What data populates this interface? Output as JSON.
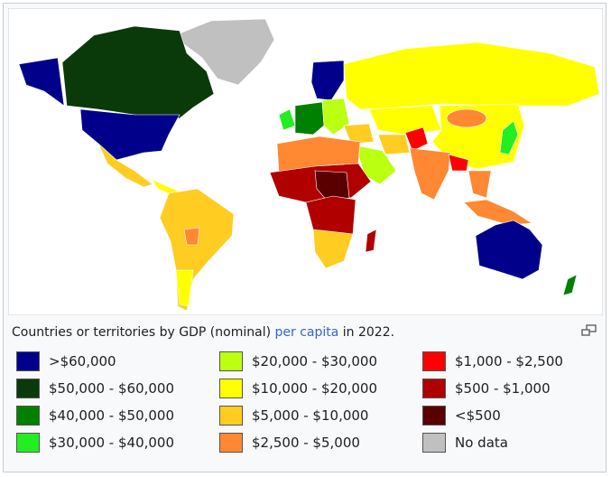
{
  "caption": {
    "before": "Countries or territories by GDP (nominal)",
    "link": "per capita",
    "after": "in 2022."
  },
  "legend": [
    {
      "label": ">$60,000",
      "color": "#00008b"
    },
    {
      "label": "$50,000 - $60,000",
      "color": "#0a3a0a"
    },
    {
      "label": "$40,000 - $50,000",
      "color": "#008000"
    },
    {
      "label": "$30,000 - $40,000",
      "color": "#22ee22"
    },
    {
      "label": "$20,000 - $30,000",
      "color": "#bbff11"
    },
    {
      "label": "$10,000 - $20,000",
      "color": "#ffff00"
    },
    {
      "label": "$5,000 - $10,000",
      "color": "#ffcc22"
    },
    {
      "label": "$2,500 - $5,000",
      "color": "#ff8833"
    },
    {
      "label": "$1,000 - $2,500",
      "color": "#ff0000"
    },
    {
      "label": "$500 - $1,000",
      "color": "#b00000"
    },
    {
      "label": "<$500",
      "color": "#5a0000"
    },
    {
      "label": "No data",
      "color": "#c0c0c0"
    }
  ]
}
